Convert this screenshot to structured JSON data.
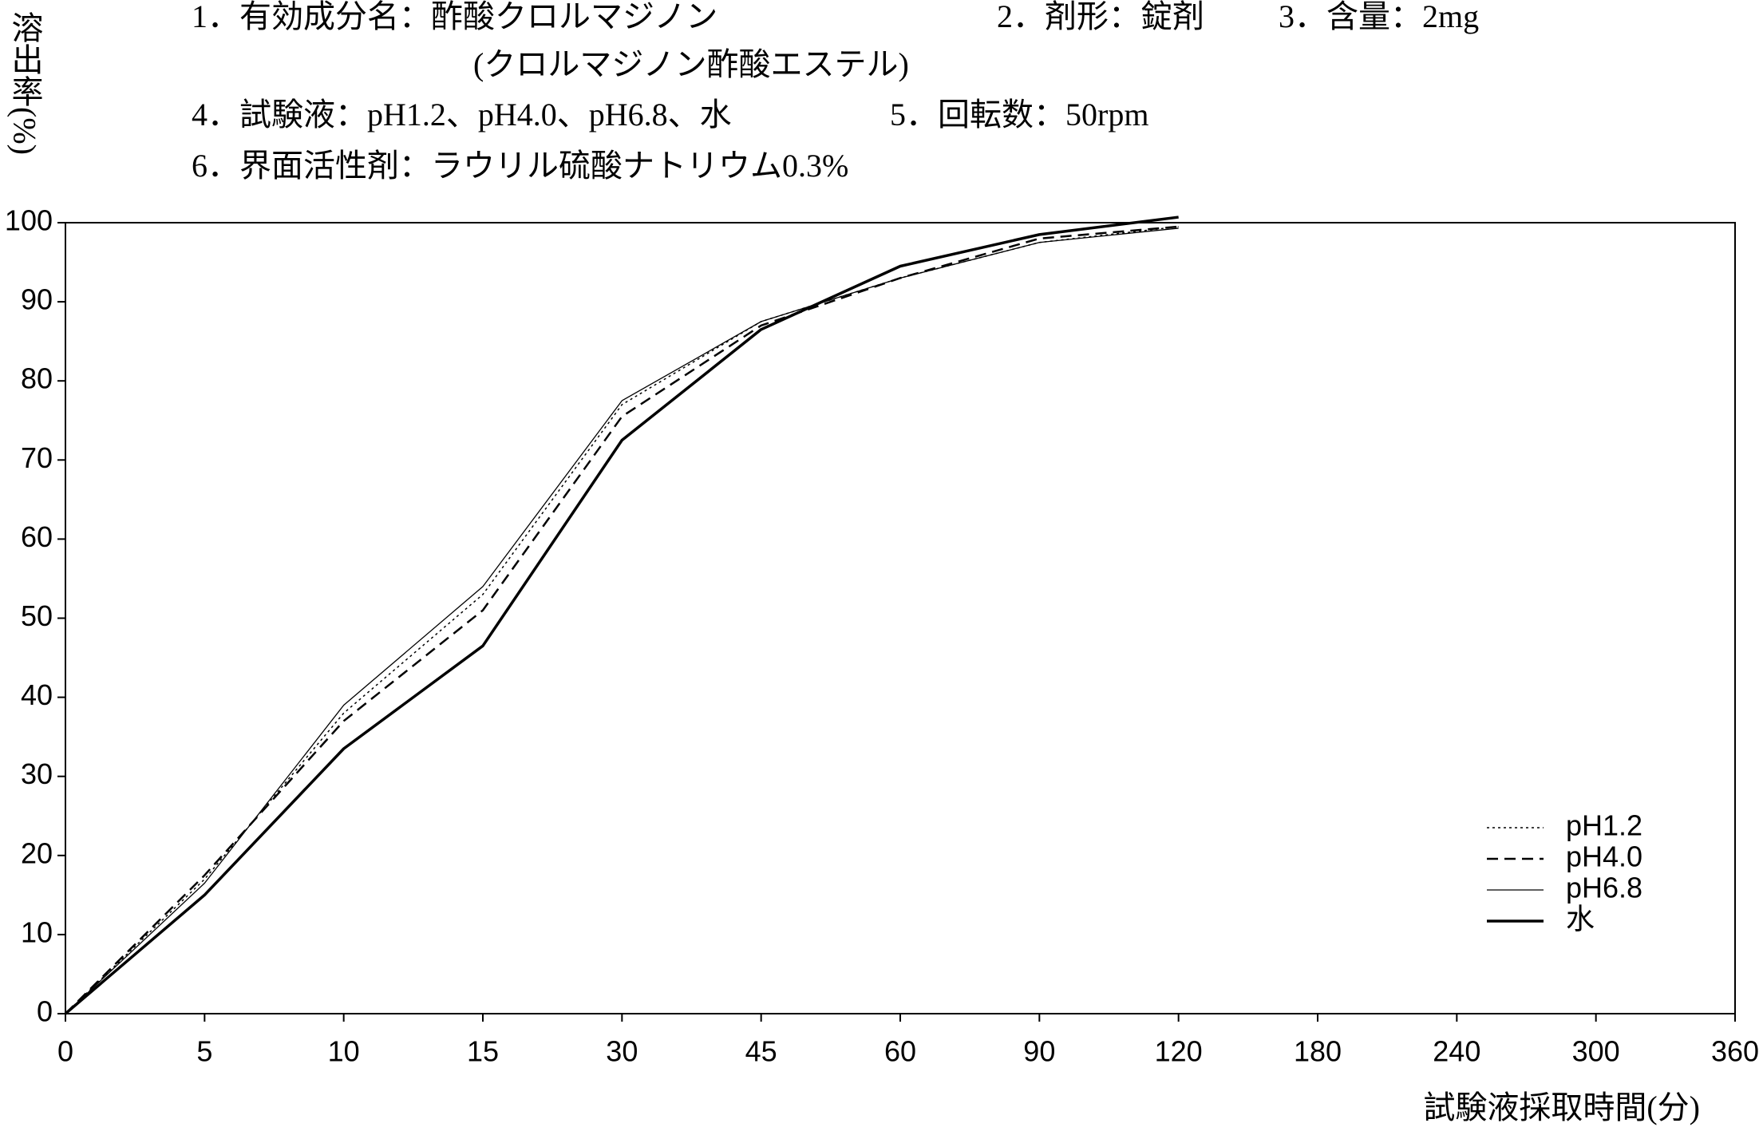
{
  "chart_data": {
    "type": "line",
    "notes": [
      "1．有効成分名：酢酸クロルマジノン",
      "(クロルマジノン酢酸エステル)",
      "2．剤形：錠剤",
      "3．含量：2mg",
      "4．試験液：pH1.2、pH4.0、pH6.8、水",
      "5．回転数：50rpm",
      "6．界面活性剤：ラウリル硫酸ナトリウム0.3%"
    ],
    "y_label": "溶出率(%)",
    "x_label": "試験液採取時間(分)",
    "categories": [
      "0",
      "5",
      "10",
      "15",
      "30",
      "45",
      "60",
      "90",
      "120",
      "180",
      "240",
      "300",
      "360"
    ],
    "series": [
      {
        "name": "pH1.2",
        "color": "#000000",
        "line_style": "dotted",
        "line_width": 1.5,
        "values": [
          0,
          17,
          38,
          53,
          77,
          87.5,
          93,
          97.5,
          99.5,
          null,
          null,
          null,
          null
        ]
      },
      {
        "name": "pH4.0",
        "color": "#000000",
        "line_style": "dashed",
        "line_width": 2.5,
        "values": [
          0,
          17.5,
          37,
          51,
          75.5,
          87,
          93,
          98,
          99.5,
          null,
          null,
          null,
          null
        ]
      },
      {
        "name": "pH6.8",
        "color": "#000000",
        "line_style": "solid",
        "line_width": 1.3,
        "values": [
          0,
          16.5,
          39,
          54,
          77.5,
          87.5,
          93,
          97.5,
          99.3,
          null,
          null,
          null,
          null
        ]
      },
      {
        "name": "水",
        "color": "#000000",
        "line_style": "solid",
        "line_width": 3.5,
        "values": [
          0,
          15,
          33.5,
          46.5,
          72.5,
          86.5,
          94.5,
          98.5,
          100.7,
          null,
          null,
          null,
          null
        ]
      }
    ],
    "ylim": [
      0,
      100
    ],
    "yticks": [
      0,
      10,
      20,
      30,
      40,
      50,
      60,
      70,
      80,
      90,
      100
    ],
    "legend": "lower right",
    "grid": false
  }
}
